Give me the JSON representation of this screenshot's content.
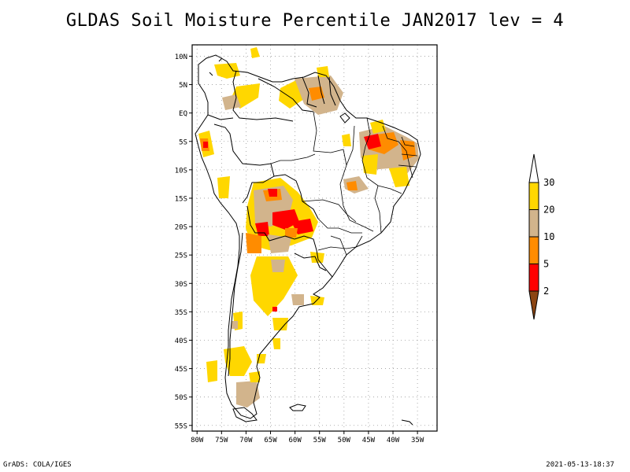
{
  "title": "GLDAS Soil Moisture Percentile JAN2017 lev = 4",
  "footer": {
    "left": "GrADS: COLA/IGES",
    "right": "2021-05-13-18:37"
  },
  "axes": {
    "lat_labels": [
      "10N",
      "5N",
      "EQ",
      "5S",
      "10S",
      "15S",
      "20S",
      "25S",
      "30S",
      "35S",
      "40S",
      "45S",
      "50S",
      "55S"
    ],
    "lat_values": [
      10,
      5,
      0,
      -5,
      -10,
      -15,
      -20,
      -25,
      -30,
      -35,
      -40,
      -45,
      -50,
      -55
    ],
    "lon_labels": [
      "80W",
      "75W",
      "70W",
      "65W",
      "60W",
      "55W",
      "50W",
      "45W",
      "40W",
      "35W"
    ],
    "lon_values": [
      -80,
      -75,
      -70,
      -65,
      -60,
      -55,
      -50,
      -45,
      -40,
      -35
    ],
    "lon_range": [
      -81,
      -31
    ],
    "lat_range": [
      -56,
      12
    ],
    "grid": true
  },
  "legend": {
    "labels": [
      "2",
      "5",
      "10",
      "20",
      "30"
    ],
    "bin_colors": [
      "#8B4513",
      "#ff0000",
      "#ff8c00",
      "#d2b48c",
      "#ffd700",
      "#ffffff"
    ],
    "orientation": "vertical",
    "placement": "right"
  },
  "colors": {
    "below_2": "#8B4513",
    "2_to_5": "#ff0000",
    "5_to_10": "#ff8c00",
    "10_to_20": "#d2b48c",
    "20_to_30": "#ffd700",
    "coast": "#000000",
    "grid": "#999999"
  }
}
